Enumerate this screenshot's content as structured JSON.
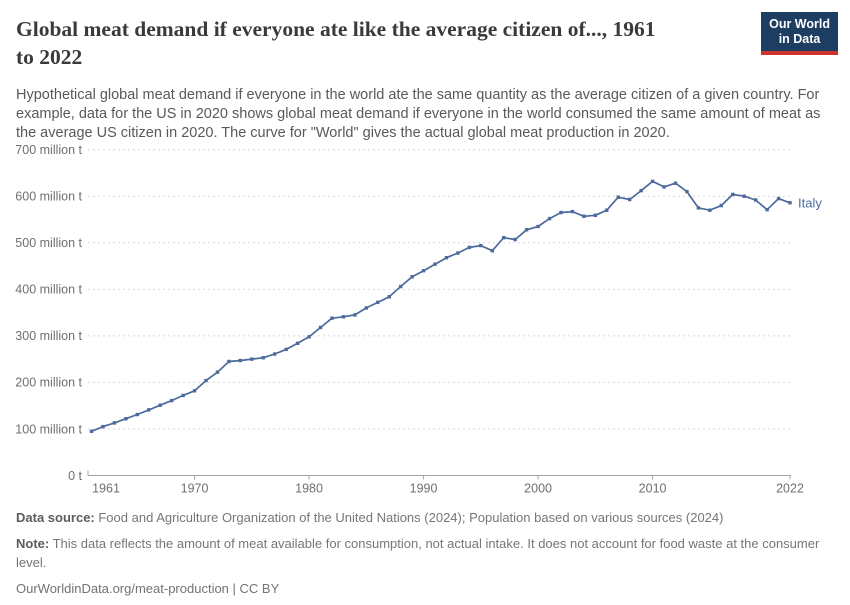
{
  "header": {
    "title": "Global meat demand if everyone ate like the average citizen of..., 1961 to 2022",
    "title_lines": [
      "Global meat demand if everyone ate like the average citizen of..., 1961",
      "to 2022"
    ],
    "subtitle": "Hypothetical global meat demand if everyone in the world ate the same quantity as the average citizen of a given country. For example, data for the US in 2020 shows global meat demand if everyone in the world consumed the same amount of meat as the average US citizen in 2020. The curve for \"World\" gives the actual global meat production in 2020.",
    "logo": {
      "line1": "Our World",
      "line2": "in Data",
      "bg_color": "#1d3d63",
      "accent_color": "#cc342b"
    }
  },
  "chart_data": {
    "type": "line",
    "title": "Global meat demand if everyone ate like the average citizen of..., 1961 to 2022",
    "xlabel": "",
    "ylabel": "",
    "unit": "million t",
    "ylim": [
      0,
      700
    ],
    "ytick_interval": 100,
    "yticks": [
      {
        "value": 0,
        "label": "0 t"
      },
      {
        "value": 100,
        "label": "100 million t"
      },
      {
        "value": 200,
        "label": "200 million t"
      },
      {
        "value": 300,
        "label": "300 million t"
      },
      {
        "value": 400,
        "label": "400 million t"
      },
      {
        "value": 500,
        "label": "500 million t"
      },
      {
        "value": 600,
        "label": "600 million t"
      },
      {
        "value": 700,
        "label": "700 million t"
      }
    ],
    "xticks": [
      1961,
      1970,
      1980,
      1990,
      2000,
      2010,
      2022
    ],
    "xlim": [
      1961,
      2022
    ],
    "grid": "dashed horizontal gridlines",
    "legend_position": "end-of-line label",
    "end_label": "Italy",
    "series": [
      {
        "name": "Italy",
        "color": "#4c6a9c",
        "x_start": 1961,
        "x_end": 2022,
        "x_step": 1,
        "values": [
          95,
          105,
          113,
          122,
          131,
          141,
          151,
          161,
          172,
          182,
          204,
          222,
          245,
          247,
          250,
          253,
          261,
          271,
          284,
          298,
          318,
          338,
          341,
          345,
          360,
          372,
          384,
          406,
          427,
          440,
          454,
          468,
          478,
          490,
          494,
          483,
          511,
          507,
          528,
          535,
          552,
          565,
          567,
          557,
          559,
          570,
          598,
          593,
          612,
          632,
          620,
          628,
          610,
          575,
          570,
          580,
          604,
          600,
          592,
          571,
          595,
          586
        ]
      }
    ]
  },
  "footer": {
    "data_source_label": "Data source:",
    "data_source_text": " Food and Agriculture Organization of the United Nations (2024); Population based on various sources (2024)",
    "note_label": "Note:",
    "note_text": " This data reflects the amount of meat available for consumption, not actual intake. It does not account for food waste at the consumer level.",
    "attribution": "OurWorldinData.org/meat-production | CC BY"
  },
  "colors": {
    "line": "#4c6a9c",
    "gridline": "#d8d8d8",
    "axis": "#a3a3a3",
    "tick_label": "#6f6f6f",
    "title_text": "#3a3a3a",
    "subtitle_text": "#595959"
  }
}
